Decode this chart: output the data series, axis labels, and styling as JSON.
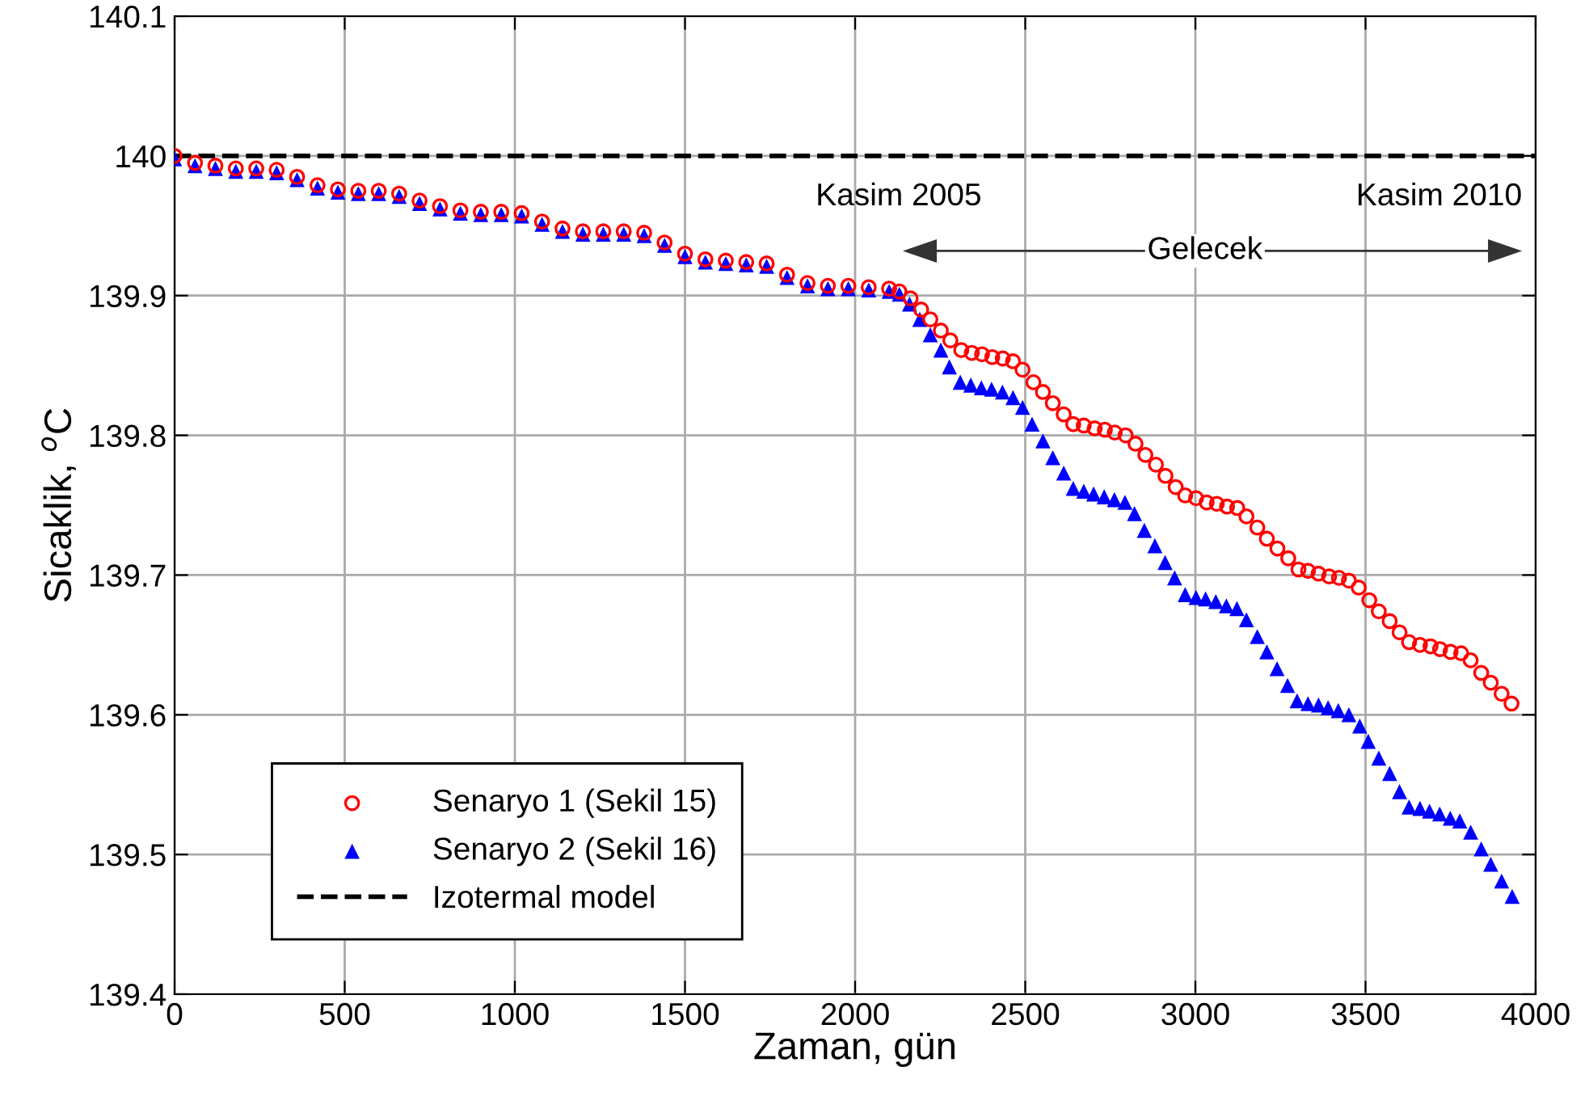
{
  "chart_data": {
    "type": "scatter",
    "xlabel": "Zaman, gün",
    "ylabel": "Sicaklik, $^{o}$C",
    "xlim": [
      0,
      4000
    ],
    "xticks": [
      0,
      500,
      1000,
      1500,
      2000,
      2500,
      3000,
      3500,
      4000
    ],
    "ylim": [
      139.4,
      140.1
    ],
    "yticks": [
      139.4,
      139.5,
      139.6,
      139.7,
      139.8,
      139.9,
      140,
      140.1
    ],
    "grid": true,
    "legend": "bottom left",
    "annotations": [
      "Kasim 2005",
      "Kasim 2010",
      "Gelecek"
    ],
    "series": [
      {
        "name": "Senaryo 1 (Sekil 15)",
        "color": "#ff0000",
        "marker": "circle",
        "x": [
          0,
          60,
          120,
          180,
          240,
          300,
          360,
          420,
          480,
          540,
          600,
          660,
          720,
          780,
          840,
          900,
          960,
          1020,
          1080,
          1140,
          1200,
          1260,
          1320,
          1380,
          1440,
          1500,
          1560,
          1620,
          1680,
          1740,
          1800,
          1860,
          1920,
          1980,
          2040,
          2100,
          2130,
          2163,
          2194,
          2221,
          2252,
          2280,
          2312,
          2343,
          2373,
          2403,
          2434,
          2464,
          2492,
          2524,
          2552,
          2581,
          2613,
          2641,
          2672,
          2704,
          2734,
          2763,
          2795,
          2824,
          2853,
          2884,
          2912,
          2942,
          2970,
          3002,
          3033,
          3063,
          3093,
          3123,
          3150,
          3182,
          3210,
          3241,
          3273,
          3303,
          3331,
          3362,
          3393,
          3422,
          3451,
          3480,
          3511,
          3539,
          3571,
          3600,
          3628,
          3660,
          3691,
          3719,
          3750,
          3781,
          3809,
          3840,
          3868,
          3900,
          3929
        ],
        "values": [
          140.0,
          139.995,
          139.993,
          139.991,
          139.991,
          139.99,
          139.985,
          139.979,
          139.976,
          139.975,
          139.975,
          139.973,
          139.968,
          139.964,
          139.961,
          139.96,
          139.96,
          139.959,
          139.953,
          139.948,
          139.946,
          139.946,
          139.946,
          139.945,
          139.938,
          139.93,
          139.926,
          139.925,
          139.924,
          139.923,
          139.915,
          139.909,
          139.907,
          139.907,
          139.906,
          139.905,
          139.903,
          139.898,
          139.89,
          139.883,
          139.875,
          139.868,
          139.861,
          139.859,
          139.858,
          139.856,
          139.855,
          139.853,
          139.847,
          139.838,
          139.831,
          139.823,
          139.815,
          139.808,
          139.807,
          139.805,
          139.804,
          139.802,
          139.8,
          139.794,
          139.786,
          139.779,
          139.771,
          139.763,
          139.757,
          139.755,
          139.752,
          139.751,
          139.749,
          139.748,
          139.742,
          139.734,
          139.726,
          139.719,
          139.712,
          139.704,
          139.703,
          139.701,
          139.699,
          139.698,
          139.696,
          139.691,
          139.682,
          139.674,
          139.667,
          139.659,
          139.652,
          139.65,
          139.649,
          139.647,
          139.645,
          139.644,
          139.639,
          139.63,
          139.623,
          139.615,
          139.608
        ]
      },
      {
        "name": "Senaryo 2 (Sekil 16)",
        "color": "#0000ff",
        "marker": "triangle",
        "x": [
          0,
          60,
          120,
          180,
          240,
          300,
          360,
          420,
          480,
          540,
          600,
          660,
          720,
          780,
          840,
          900,
          960,
          1020,
          1080,
          1140,
          1200,
          1260,
          1320,
          1380,
          1440,
          1500,
          1560,
          1620,
          1680,
          1740,
          1800,
          1860,
          1920,
          1980,
          2040,
          2100,
          2130,
          2160,
          2190,
          2221,
          2252,
          2277,
          2309,
          2340,
          2371,
          2401,
          2433,
          2464,
          2492,
          2520,
          2552,
          2581,
          2613,
          2641,
          2672,
          2701,
          2732,
          2762,
          2793,
          2821,
          2850,
          2881,
          2911,
          2939,
          2970,
          3002,
          3030,
          3060,
          3091,
          3122,
          3150,
          3182,
          3210,
          3240,
          3271,
          3299,
          3331,
          3362,
          3390,
          3420,
          3451,
          3483,
          3508,
          3539,
          3571,
          3600,
          3628,
          3660,
          3688,
          3718,
          3749,
          3777,
          3809,
          3840,
          3868,
          3900,
          3931
        ],
        "values": [
          139.998,
          139.993,
          139.991,
          139.989,
          139.989,
          139.988,
          139.983,
          139.977,
          139.974,
          139.973,
          139.973,
          139.971,
          139.966,
          139.962,
          139.959,
          139.958,
          139.958,
          139.957,
          139.951,
          139.946,
          139.944,
          139.944,
          139.944,
          139.943,
          139.936,
          139.928,
          139.924,
          139.923,
          139.922,
          139.921,
          139.913,
          139.907,
          139.905,
          139.905,
          139.904,
          139.903,
          139.901,
          139.894,
          139.883,
          139.872,
          139.861,
          139.849,
          139.838,
          139.836,
          139.834,
          139.833,
          139.831,
          139.827,
          139.82,
          139.808,
          139.796,
          139.784,
          139.773,
          139.762,
          139.76,
          139.758,
          139.756,
          139.754,
          139.752,
          139.744,
          139.732,
          139.721,
          139.709,
          139.698,
          139.686,
          139.684,
          139.683,
          139.681,
          139.678,
          139.676,
          139.668,
          139.656,
          139.645,
          139.633,
          139.621,
          139.61,
          139.608,
          139.607,
          139.605,
          139.603,
          139.6,
          139.592,
          139.581,
          139.569,
          139.558,
          139.545,
          139.534,
          139.533,
          139.531,
          139.529,
          139.526,
          139.524,
          139.516,
          139.504,
          139.493,
          139.481,
          139.47
        ]
      },
      {
        "name": "Izotermal model",
        "type": "line",
        "color": "#000000",
        "marker": "none",
        "line_style": "dashed",
        "x": [
          0,
          4000
        ],
        "values": [
          140,
          140
        ]
      }
    ]
  }
}
